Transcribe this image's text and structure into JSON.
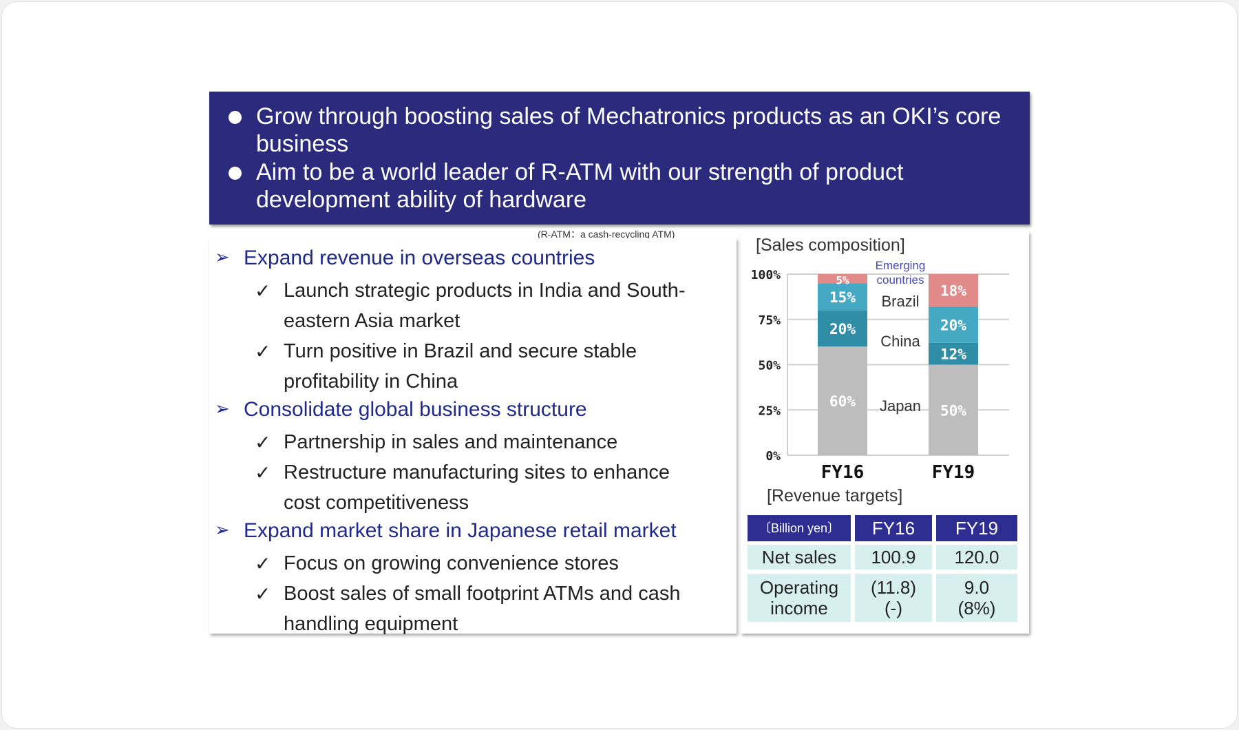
{
  "header": {
    "bullets": [
      "Grow through boosting sales of Mechatronics products as an OKI’s core business",
      "Aim to be a world leader of R-ATM with our strength of product development ability of hardware"
    ]
  },
  "note": "(R-ATM：a cash-recycling ATM)",
  "strategies": [
    {
      "title": "Expand revenue in overseas countries",
      "items": [
        [
          "Launch strategic products in India and South-",
          "eastern Asia market"
        ],
        [
          "Turn positive in Brazil and secure stable",
          "profitability in China"
        ]
      ]
    },
    {
      "title": "Consolidate global business structure",
      "items": [
        [
          "Partnership in sales and maintenance"
        ],
        [
          "Restructure manufacturing sites to enhance",
          "cost competitiveness"
        ]
      ]
    },
    {
      "title": "Expand market share in Japanese retail market",
      "items": [
        [
          "Focus on growing convenience stores"
        ],
        [
          "Boost sales of small footprint  ATMs and cash",
          "handling equipment"
        ]
      ]
    }
  ],
  "check_icon": "✓",
  "chart_data": {
    "type": "bar",
    "stacked": true,
    "title": "[Sales composition]",
    "categories": [
      "FY16",
      "FY19"
    ],
    "yticks": [
      "0%",
      "25%",
      "50%",
      "75%",
      "100%"
    ],
    "ylim": [
      0,
      100
    ],
    "grid": true,
    "series": [
      {
        "name": "Japan",
        "values": [
          60,
          50
        ],
        "labels": [
          "60%",
          "50%"
        ],
        "color": "#bdbdbd"
      },
      {
        "name": "China",
        "values": [
          20,
          12
        ],
        "labels": [
          "20%",
          "12%"
        ],
        "color": "#2f8ea6"
      },
      {
        "name": "Brazil",
        "values": [
          15,
          20
        ],
        "labels": [
          "15%",
          "20%"
        ],
        "color": "#46a9c3"
      },
      {
        "name": "Emerging countries",
        "values": [
          5,
          18
        ],
        "labels": [
          "5%",
          "18%"
        ],
        "color": "#e08a8a"
      }
    ],
    "emerging_label": [
      "Emerging",
      "countries"
    ],
    "emerging_label_color": "#4a4ab0"
  },
  "revenue": {
    "title": "[Revenue  targets]",
    "headers": [
      "〔Billion yen〕",
      "FY16",
      "FY19"
    ],
    "rows": [
      {
        "label": "Net sales",
        "fy16": "100.9",
        "fy19": "120.0"
      },
      {
        "label": "Operating income",
        "fy16": "(11.8)\n(-)",
        "fy19": "9.0\n(8%)"
      }
    ]
  }
}
